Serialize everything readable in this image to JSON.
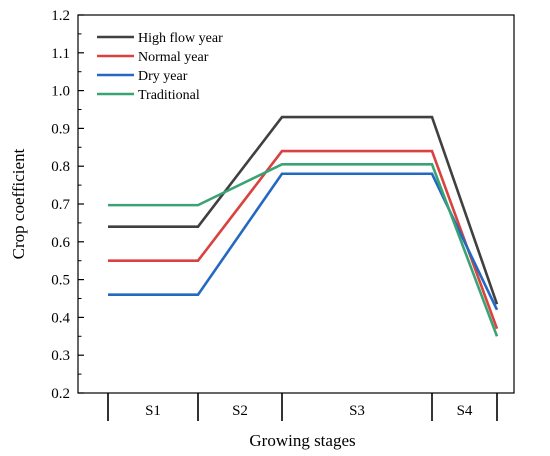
{
  "chart_data": {
    "type": "line",
    "title": "",
    "xlabel": "Growing stages",
    "ylabel": "Crop coefficient",
    "ylim": [
      0.2,
      1.2
    ],
    "yticks": [
      "0.2",
      "0.3",
      "0.4",
      "0.5",
      "0.6",
      "0.7",
      "0.8",
      "0.9",
      "1.0",
      "1.1",
      "1.2"
    ],
    "stages": [
      "S1",
      "S2",
      "S3",
      "S4"
    ],
    "grid": false,
    "legend_position": "top-left",
    "series": [
      {
        "name": "High flow year",
        "color": "#404040",
        "points": [
          [
            "S1 start",
            0.64
          ],
          [
            "S1 end",
            0.64
          ],
          [
            "S3 start",
            0.93
          ],
          [
            "S3 end",
            0.93
          ],
          [
            "S4 end",
            0.435
          ]
        ]
      },
      {
        "name": "Normal year",
        "color": "#d9423f",
        "points": [
          [
            "S1 start",
            0.55
          ],
          [
            "S1 end",
            0.55
          ],
          [
            "S3 start",
            0.84
          ],
          [
            "S3 end",
            0.84
          ],
          [
            "S4 end",
            0.37
          ]
        ]
      },
      {
        "name": "Dry year",
        "color": "#2469c1",
        "points": [
          [
            "S1 start",
            0.46
          ],
          [
            "S1 end",
            0.46
          ],
          [
            "S3 start",
            0.78
          ],
          [
            "S3 end",
            0.78
          ],
          [
            "S4 end",
            0.42
          ]
        ]
      },
      {
        "name": "Traditional",
        "color": "#3aa374",
        "points": [
          [
            "S1 start",
            0.697
          ],
          [
            "S1 end",
            0.697
          ],
          [
            "S3 start",
            0.805
          ],
          [
            "S3 end",
            0.805
          ],
          [
            "S4 end",
            0.35
          ]
        ]
      }
    ]
  }
}
